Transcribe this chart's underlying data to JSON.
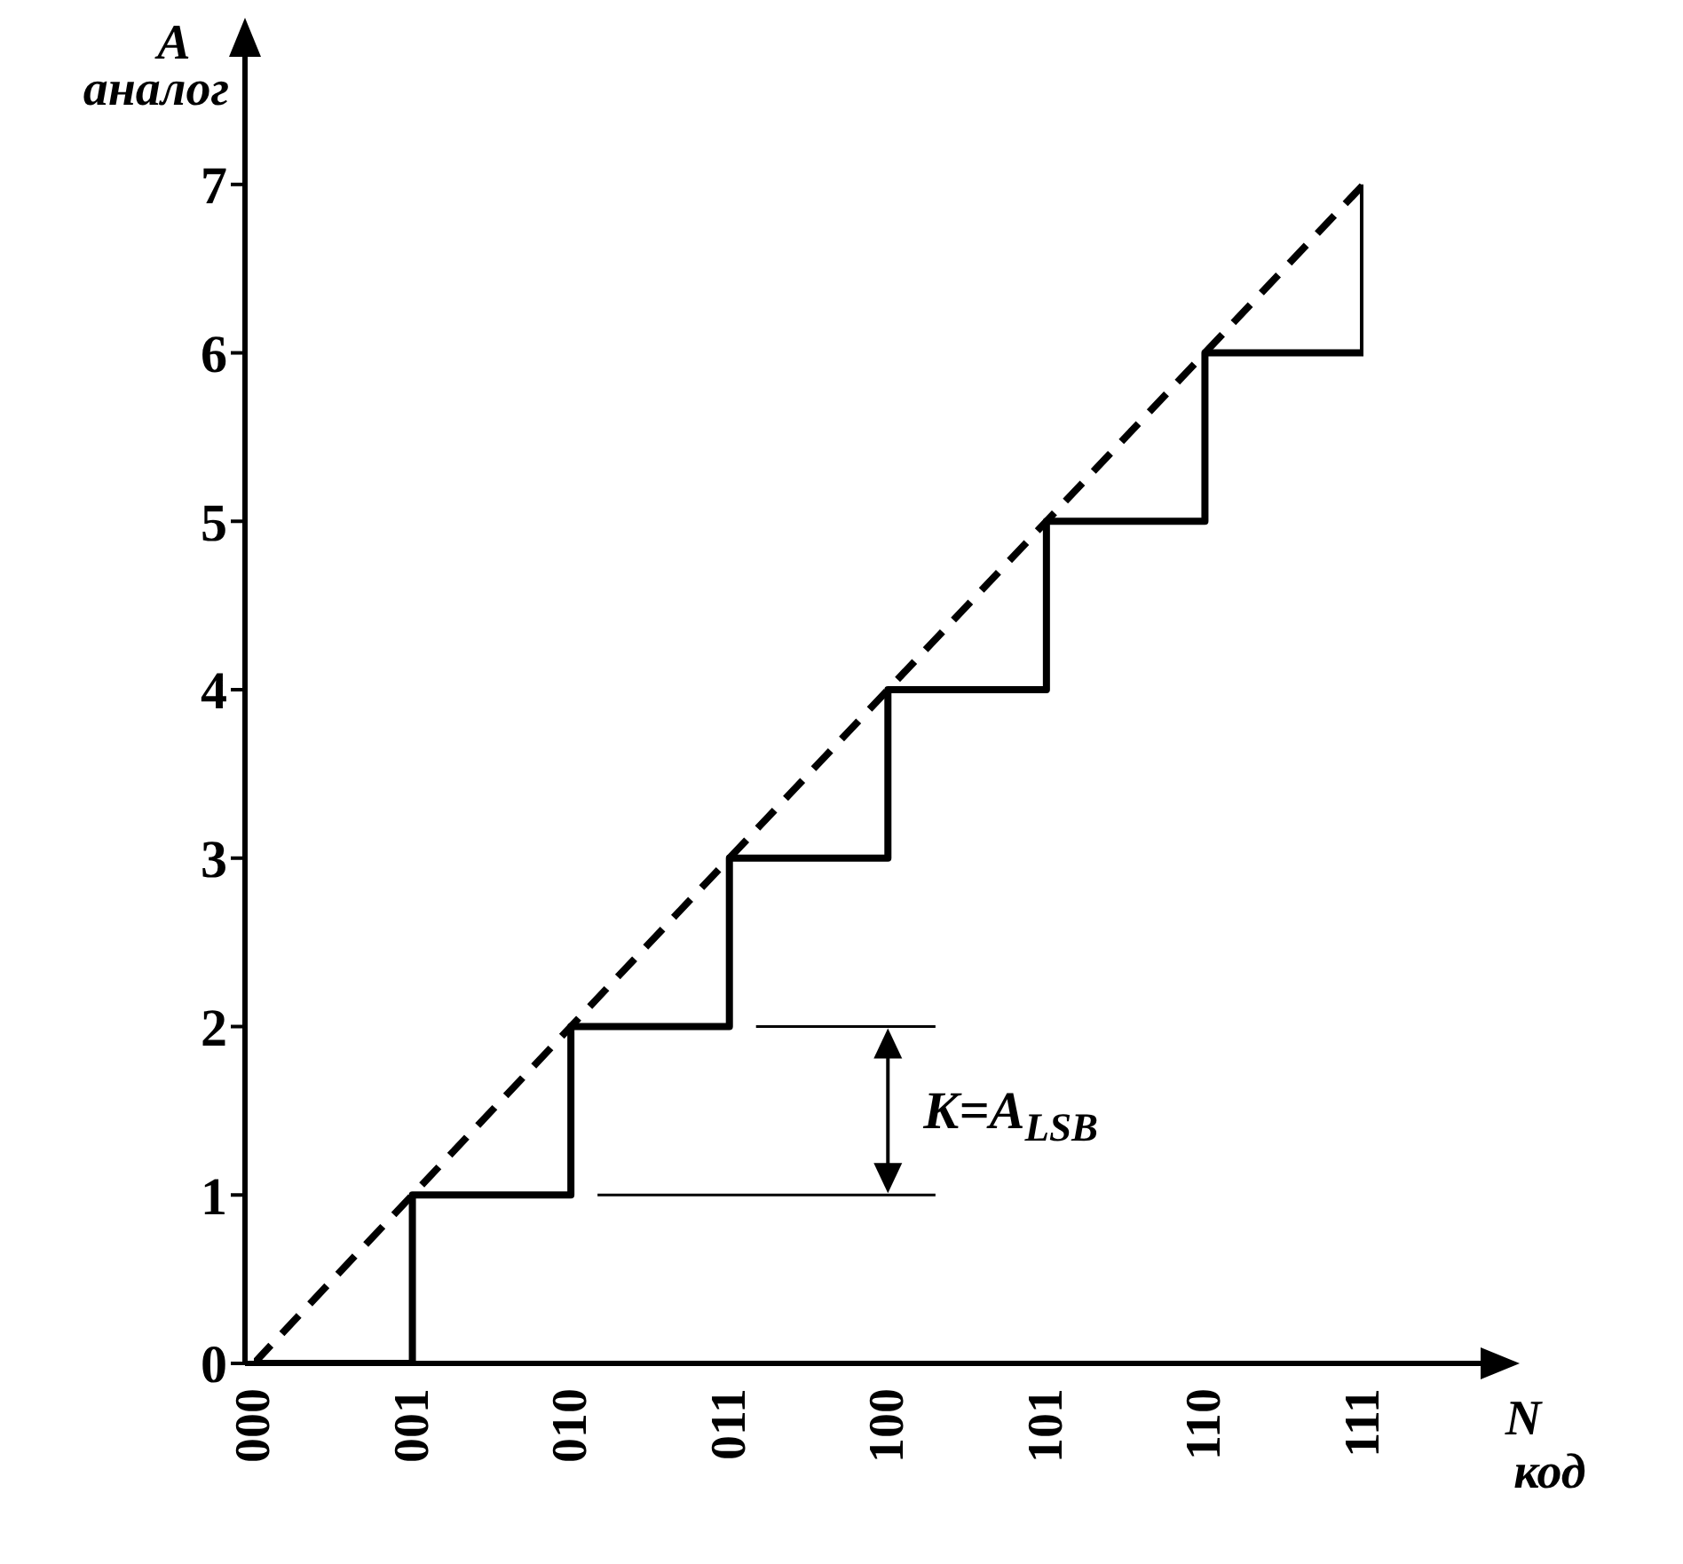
{
  "chart_data": {
    "type": "step",
    "xlabel": "N код",
    "ylabel": "A аналог",
    "categories": [
      "000",
      "001",
      "010",
      "011",
      "100",
      "101",
      "110",
      "111"
    ],
    "series": [
      {
        "color": "#000000",
        "values": [
          0,
          1,
          2,
          3,
          4,
          5,
          6,
          7
        ],
        "line_style": "solid"
      },
      {
        "type": "line",
        "color": "#000000",
        "values": [
          0,
          1,
          2,
          3,
          4,
          5,
          6,
          7
        ],
        "line_style": "dashed"
      }
    ],
    "ylim": [
      0,
      7.8
    ],
    "yticks": [
      0,
      1,
      2,
      3,
      4,
      5,
      6,
      7
    ],
    "grid": false,
    "legend": false,
    "marker": "none",
    "annotations": [
      "K=A$_{LSB}$"
    ]
  }
}
